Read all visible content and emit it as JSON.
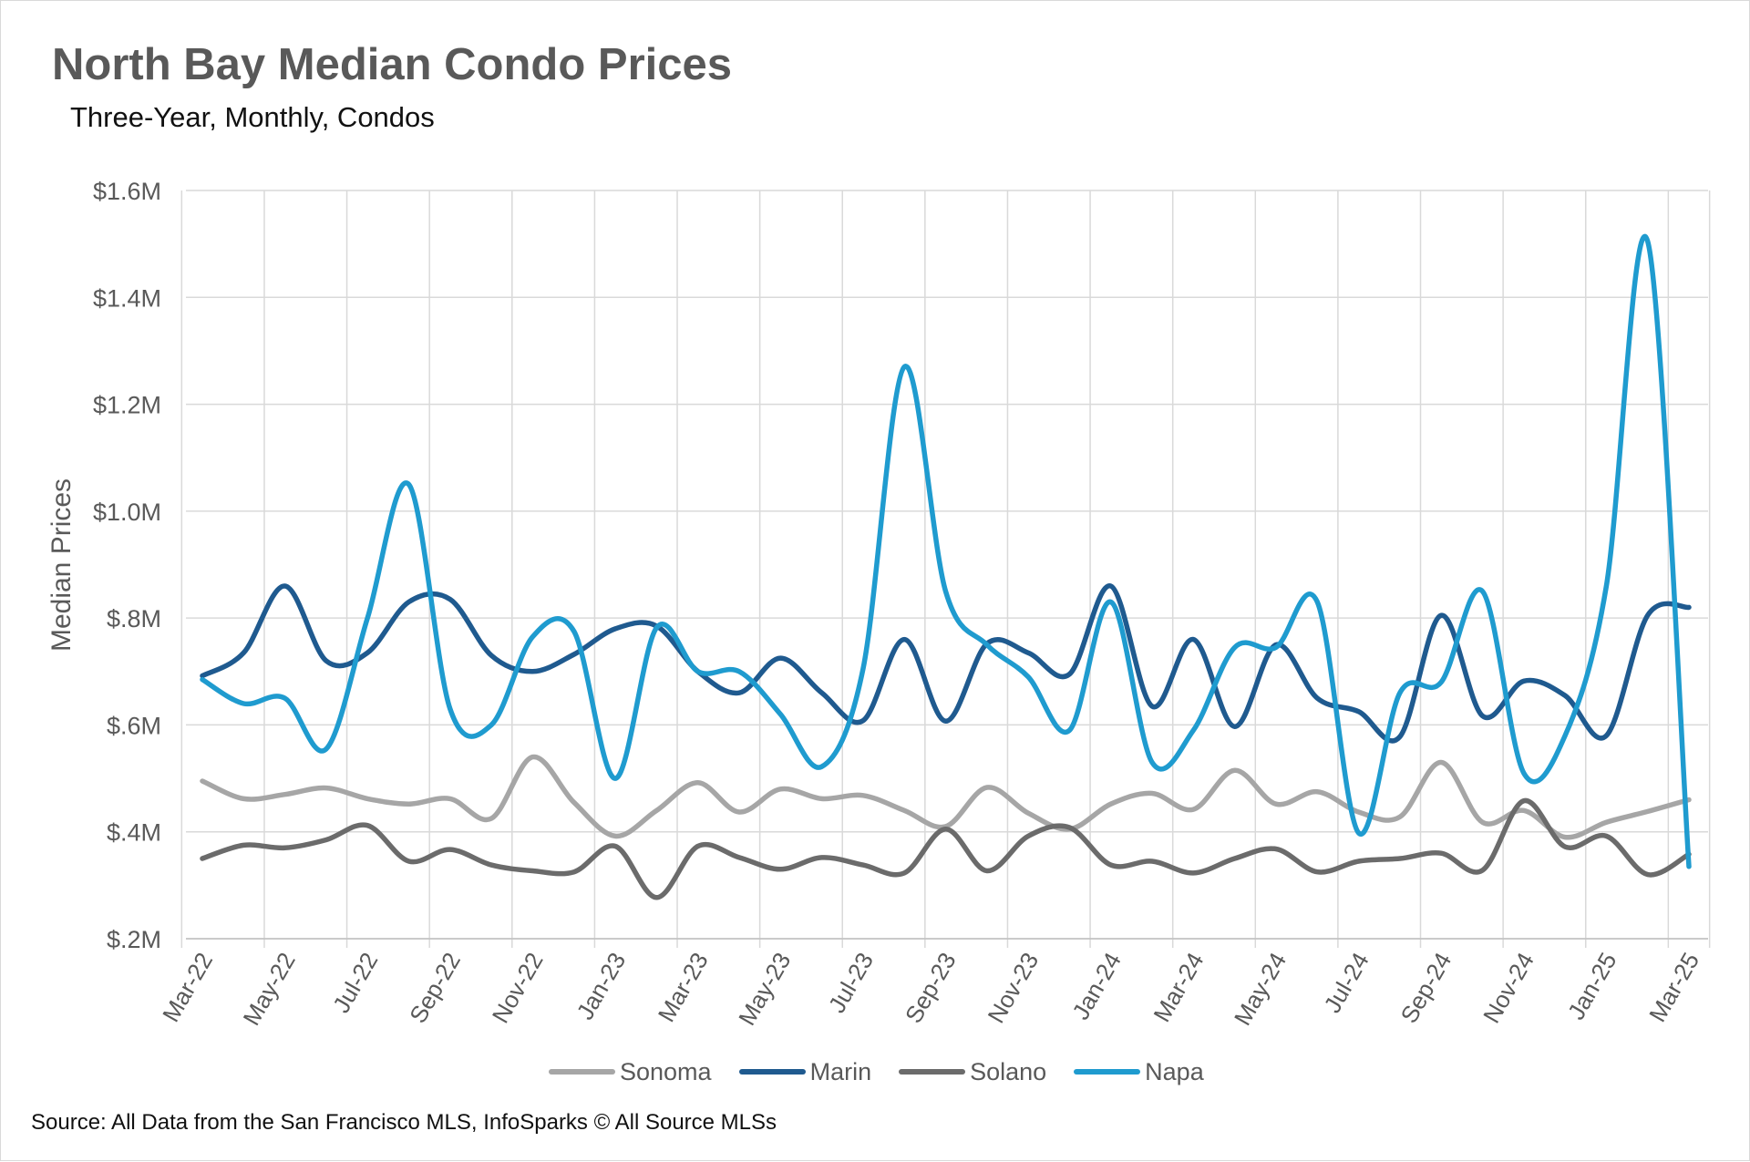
{
  "title": "North Bay Median Condo Prices",
  "subtitle": "Three-Year, Monthly, Condos",
  "source": "Source: All Data from the San Francisco MLS, InfoSparks © All Source MLSs",
  "chart_data": {
    "type": "line",
    "title": "North Bay Median Condo Prices",
    "subtitle": "Three-Year, Monthly, Condos",
    "ylabel": "Median Prices",
    "xlabel": "",
    "ylim": [
      200000,
      1600000
    ],
    "yticks": [
      200000,
      400000,
      600000,
      800000,
      1000000,
      1200000,
      1400000,
      1600000
    ],
    "ytick_labels": [
      "$.2M",
      "$.4M",
      "$.6M",
      "$.8M",
      "$1.0M",
      "$1.2M",
      "$1.4M",
      "$1.6M"
    ],
    "grid": true,
    "legend_position": "bottom",
    "x": [
      "Mar-22",
      "Apr-22",
      "May-22",
      "Jun-22",
      "Jul-22",
      "Aug-22",
      "Sep-22",
      "Oct-22",
      "Nov-22",
      "Dec-22",
      "Jan-23",
      "Feb-23",
      "Mar-23",
      "Apr-23",
      "May-23",
      "Jun-23",
      "Jul-23",
      "Aug-23",
      "Sep-23",
      "Oct-23",
      "Nov-23",
      "Dec-23",
      "Jan-24",
      "Feb-24",
      "Mar-24",
      "Apr-24",
      "May-24",
      "Jun-24",
      "Jul-24",
      "Aug-24",
      "Sep-24",
      "Oct-24",
      "Nov-24",
      "Dec-24",
      "Jan-25",
      "Feb-25",
      "Mar-25"
    ],
    "xtick_labels": [
      "Mar-22",
      "May-22",
      "Jul-22",
      "Sep-22",
      "Nov-22",
      "Jan-23",
      "Mar-23",
      "May-23",
      "Jul-23",
      "Sep-23",
      "Nov-23",
      "Jan-24",
      "Mar-24",
      "May-24",
      "Jul-24",
      "Sep-24",
      "Nov-24",
      "Jan-25",
      "Mar-25"
    ],
    "series": [
      {
        "name": "Sonoma",
        "color": "#a6a6a6",
        "values": [
          495000,
          462000,
          470000,
          482000,
          462000,
          452000,
          462000,
          425000,
          540000,
          455000,
          392000,
          440000,
          492000,
          437000,
          480000,
          462000,
          468000,
          440000,
          410000,
          483000,
          435000,
          405000,
          452000,
          472000,
          442000,
          515000,
          452000,
          475000,
          437000,
          428000,
          530000,
          418000,
          440000,
          390000,
          418000,
          438000,
          460000
        ]
      },
      {
        "name": "Marin",
        "color": "#1f5a8f",
        "values": [
          692000,
          735000,
          860000,
          720000,
          735000,
          830000,
          835000,
          730000,
          700000,
          732000,
          780000,
          785000,
          700000,
          660000,
          725000,
          660000,
          608000,
          760000,
          607000,
          752000,
          735000,
          695000,
          860000,
          635000,
          760000,
          597000,
          750000,
          650000,
          625000,
          578000,
          805000,
          617000,
          682000,
          655000,
          580000,
          805000,
          820000
        ]
      },
      {
        "name": "Solano",
        "color": "#6b6b6b",
        "values": [
          350000,
          375000,
          370000,
          385000,
          412000,
          345000,
          367000,
          338000,
          327000,
          325000,
          373000,
          277000,
          373000,
          352000,
          330000,
          352000,
          338000,
          323000,
          405000,
          327000,
          392000,
          408000,
          338000,
          345000,
          323000,
          350000,
          368000,
          325000,
          345000,
          350000,
          360000,
          328000,
          458000,
          372000,
          392000,
          320000,
          358000
        ]
      },
      {
        "name": "Napa",
        "color": "#1f9bcf",
        "values": [
          685000,
          640000,
          650000,
          555000,
          800000,
          1050000,
          630000,
          600000,
          765000,
          775000,
          500000,
          782000,
          700000,
          700000,
          620000,
          522000,
          705000,
          1270000,
          850000,
          750000,
          690000,
          590000,
          830000,
          530000,
          590000,
          745000,
          745000,
          830000,
          398000,
          660000,
          680000,
          850000,
          510000,
          580000,
          860000,
          1505000,
          335000
        ]
      }
    ]
  }
}
